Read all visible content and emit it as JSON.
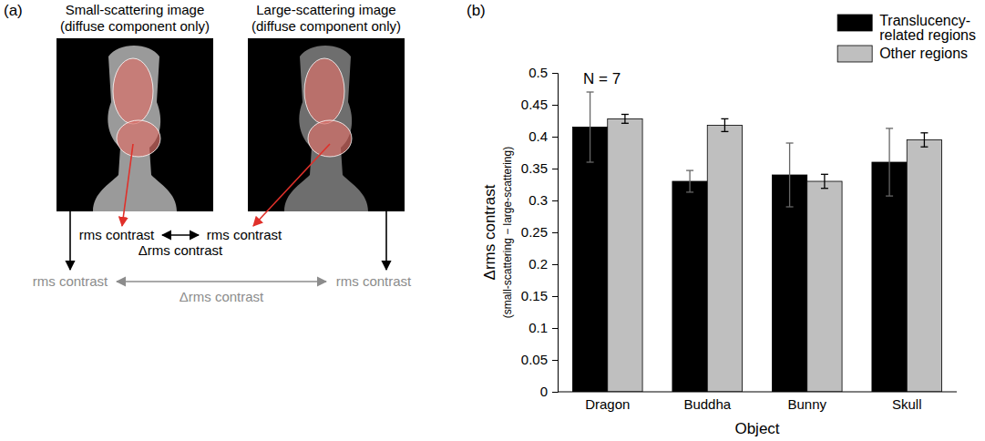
{
  "panel_a": {
    "label": "(a)",
    "images": [
      {
        "title": "Small-scattering image",
        "subtitle": "(diffuse component only)"
      },
      {
        "title": "Large-scattering image",
        "subtitle": "(diffuse component only)"
      }
    ],
    "translucency_row": {
      "left": "rms contrast",
      "right": "rms contrast",
      "difference": "Δrms contrast"
    },
    "other_row": {
      "left": "rms contrast",
      "right": "rms contrast",
      "difference": "Δrms contrast"
    }
  },
  "chart_data": {
    "type": "bar",
    "panel_label": "(b)",
    "annotation": "N = 7",
    "ylabel": "Δrms contrast",
    "ylabel_sub": "(small-scattering − large-scattering)",
    "xlabel": "Object",
    "categories": [
      "Dragon",
      "Buddha",
      "Bunny",
      "Skull"
    ],
    "series": [
      {
        "name": "Translucency-related regions",
        "color": "#000000",
        "values": [
          0.415,
          0.33,
          0.34,
          0.36
        ],
        "errors": [
          0.055,
          0.017,
          0.05,
          0.053
        ]
      },
      {
        "name": "Other regions",
        "color": "#bfbfbf",
        "values": [
          0.428,
          0.418,
          0.33,
          0.395
        ],
        "errors": [
          0.007,
          0.01,
          0.011,
          0.011
        ]
      }
    ],
    "ylim": [
      0,
      0.5
    ],
    "yticks": [
      0,
      0.05,
      0.1,
      0.15,
      0.2,
      0.25,
      0.3,
      0.35,
      0.4,
      0.45,
      0.5
    ],
    "grid": false,
    "legend": "top-right"
  }
}
